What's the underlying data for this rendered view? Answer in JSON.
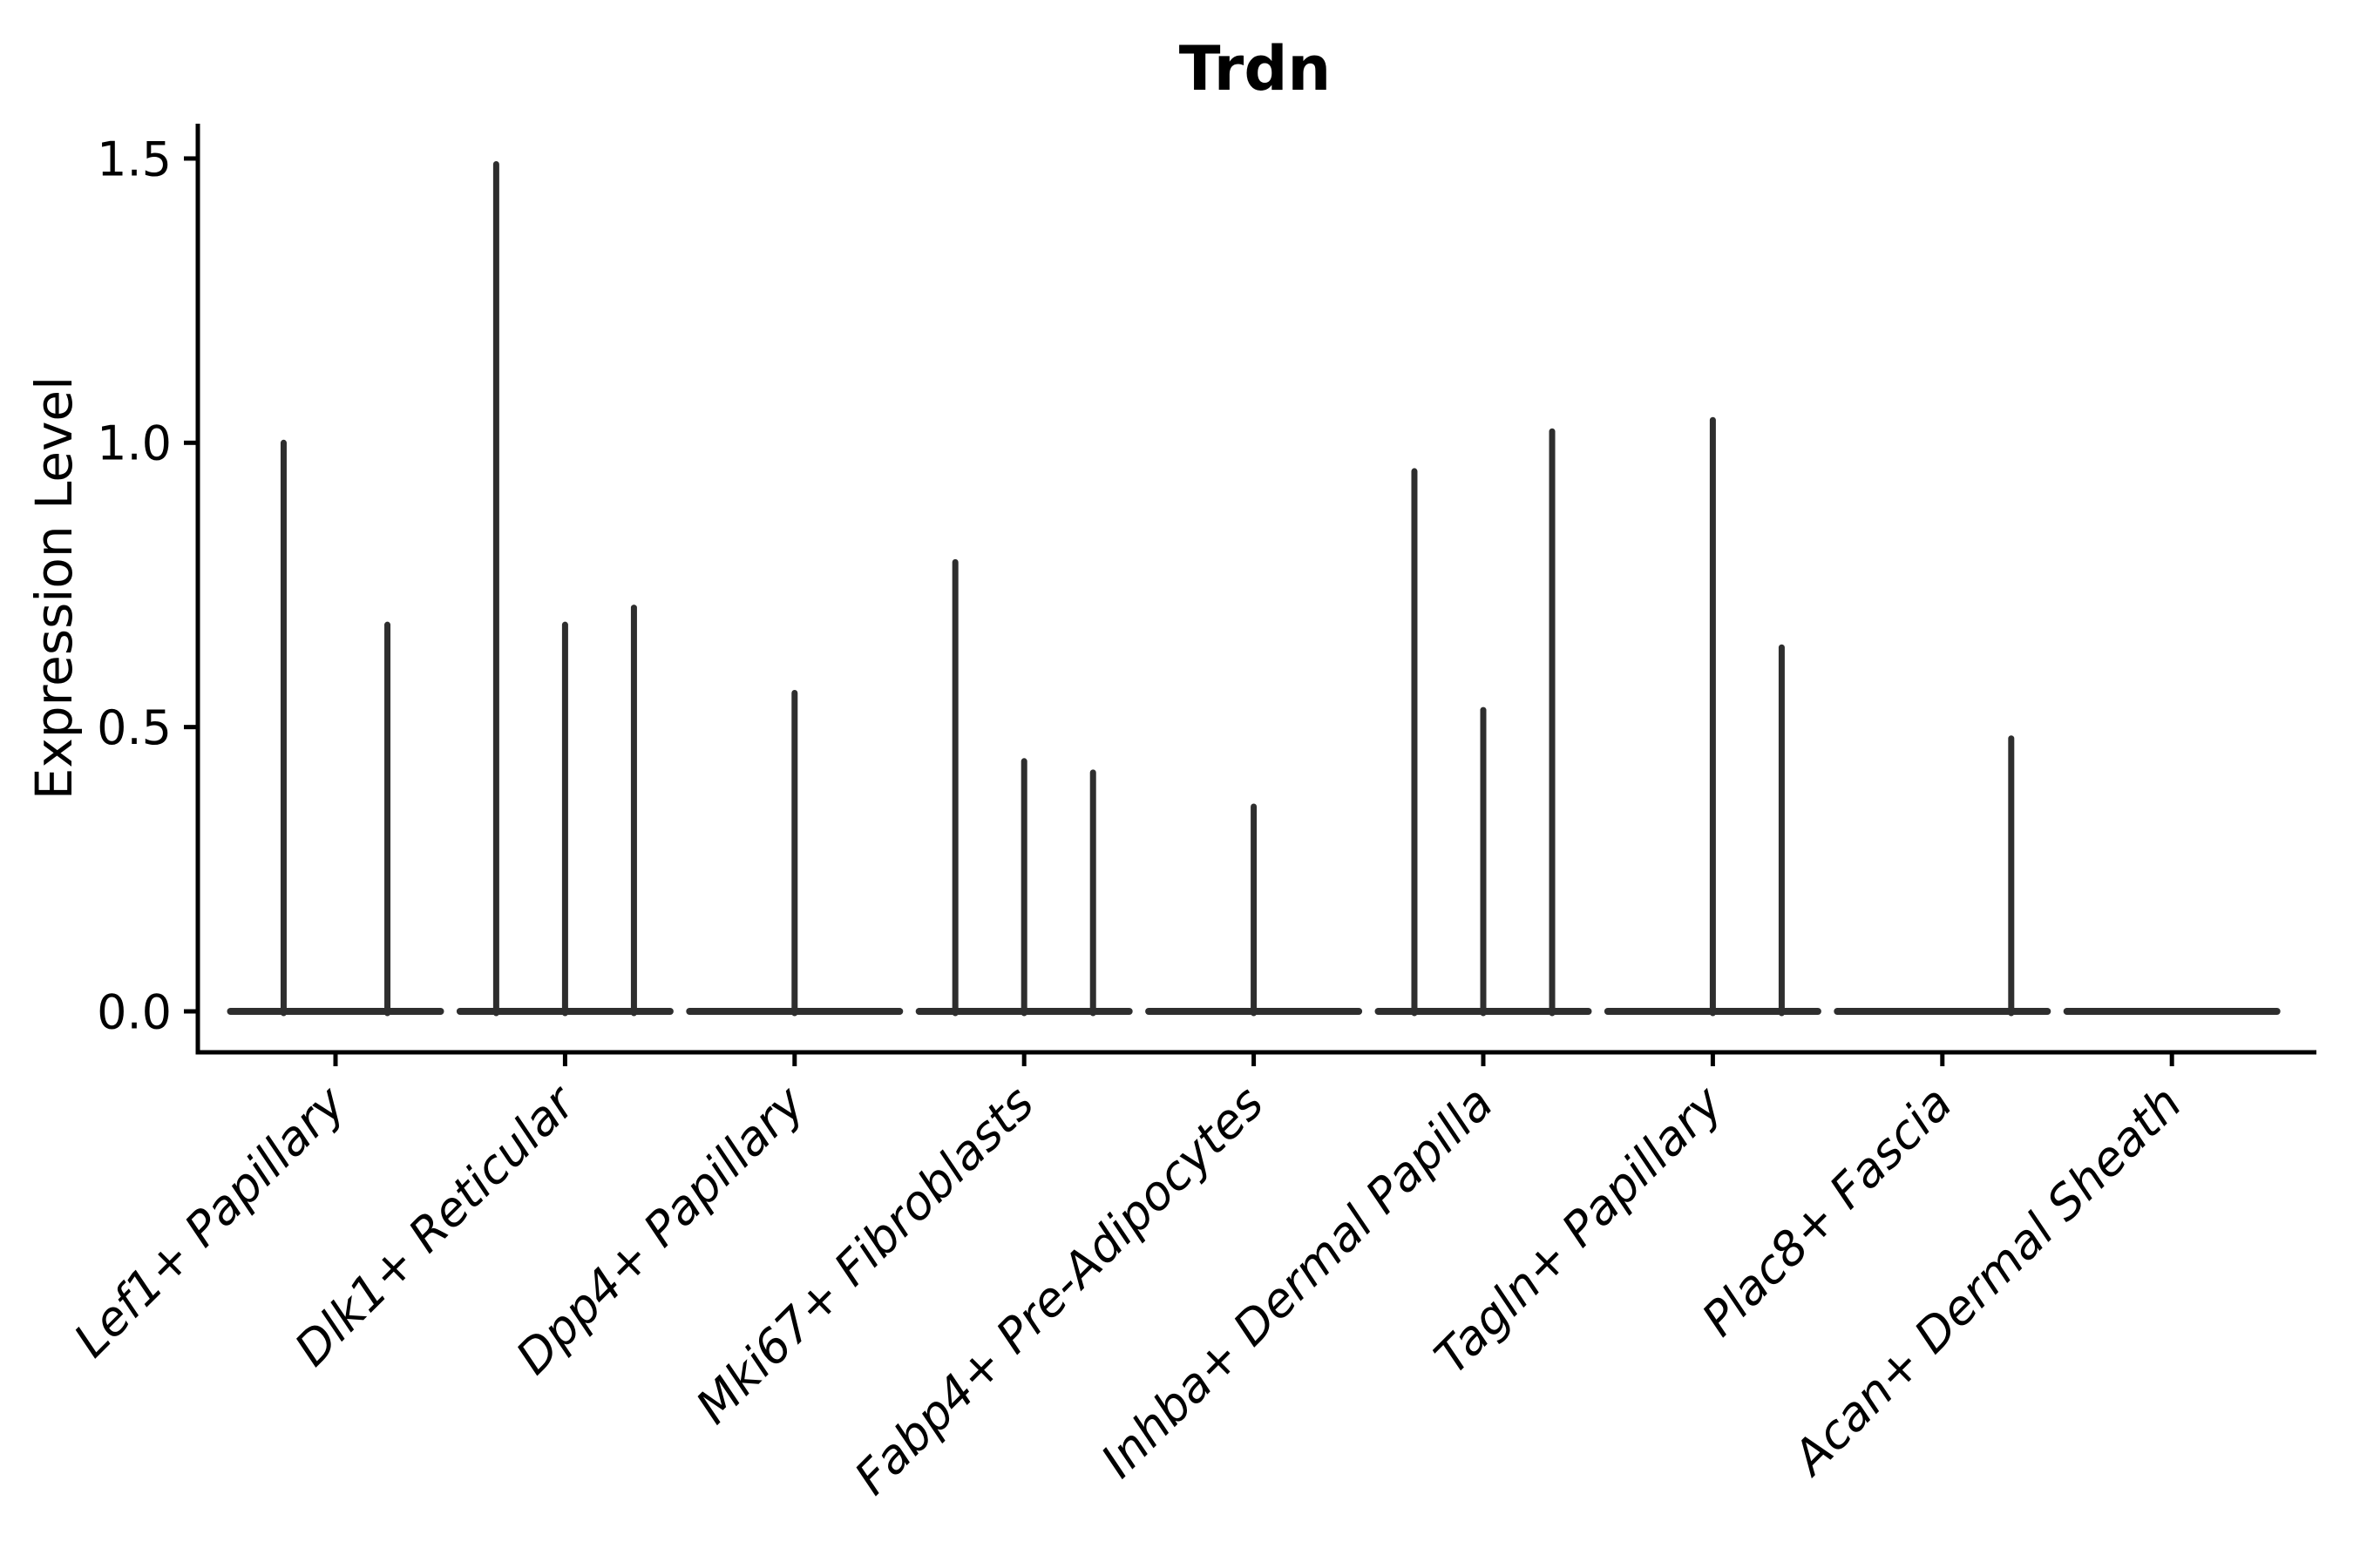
{
  "chart_data": {
    "type": "violin",
    "title": "Trdn",
    "ylabel": "Expression Level",
    "xlabel": "",
    "yticks": [
      "0.0",
      "0.5",
      "1.0",
      "1.5"
    ],
    "ytick_values": [
      0.0,
      0.5,
      1.0,
      1.5
    ],
    "ylim": [
      -0.072,
      1.56
    ],
    "legend": "none",
    "grid": false,
    "line_color": "#2e2e2e",
    "axis_color": "#000000",
    "text_color": "#000000",
    "background_color": "#ffffff",
    "note": "Each category shows flattened violins (mass at 0) as a baseline bar with thin spikes reaching the max expression of each dodged sub-violin; pos is offset in category-width units",
    "categories": [
      {
        "label": "Lef1+ Papillary",
        "violins": [
          {
            "pos": -0.226,
            "max": 1.0
          },
          {
            "pos": 0.226,
            "max": 0.68
          }
        ]
      },
      {
        "label": "Dlk1+ Reticular",
        "violins": [
          {
            "pos": -0.3,
            "max": 1.49
          },
          {
            "pos": 0.0,
            "max": 0.68
          },
          {
            "pos": 0.3,
            "max": 0.71
          }
        ]
      },
      {
        "label": "Dpp4+ Papillary",
        "violins": [
          {
            "pos": 0.0,
            "max": 0.56
          }
        ]
      },
      {
        "label": "Mki67+ Fibroblasts",
        "violins": [
          {
            "pos": -0.3,
            "max": 0.79
          },
          {
            "pos": 0.0,
            "max": 0.44
          },
          {
            "pos": 0.3,
            "max": 0.42
          }
        ]
      },
      {
        "label": "Fabp4+ Pre-Adipocytes",
        "violins": [
          {
            "pos": 0.0,
            "max": 0.36
          }
        ]
      },
      {
        "label": "Inhba+ Dermal Papilla",
        "violins": [
          {
            "pos": -0.3,
            "max": 0.95
          },
          {
            "pos": 0.0,
            "max": 0.53
          },
          {
            "pos": 0.3,
            "max": 1.02
          }
        ]
      },
      {
        "label": "Tagln+ Papillary",
        "violins": [
          {
            "pos": 0.0,
            "max": 1.04
          },
          {
            "pos": 0.3,
            "max": 0.64
          }
        ]
      },
      {
        "label": "Plac8+ Fascia",
        "violins": [
          {
            "pos": 0.3,
            "max": 0.48
          }
        ]
      },
      {
        "label": "Acan+ Dermal Sheath",
        "violins": []
      }
    ]
  }
}
